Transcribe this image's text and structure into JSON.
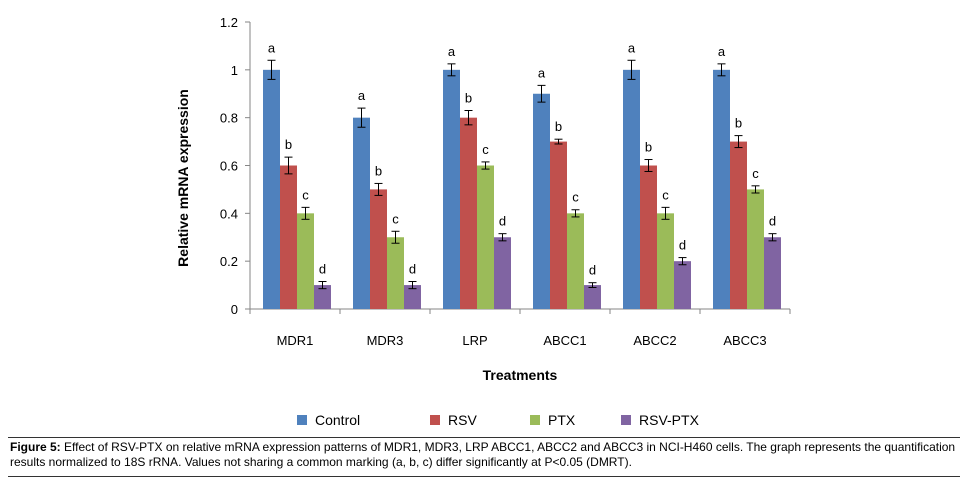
{
  "chart_data": {
    "type": "bar",
    "ylabel": "Relative mRNA expression",
    "xlabel": "Treatments",
    "ylim": [
      0,
      1.2
    ],
    "yticks": [
      "0",
      "0.2",
      "0.4",
      "0.6",
      "0.8",
      "1",
      "1.2"
    ],
    "ytick_values": [
      0,
      0.2,
      0.4,
      0.6,
      0.8,
      1.0,
      1.2
    ],
    "categories": [
      "MDR1",
      "MDR3",
      "LRP",
      "ABCC1",
      "ABCC2",
      "ABCC3"
    ],
    "legend_position": "bottom",
    "series": [
      {
        "name": "Control",
        "color": "#4F81BD",
        "values": [
          1.0,
          0.8,
          1.0,
          0.9,
          1.0,
          1.0
        ],
        "errors": [
          0.04,
          0.04,
          0.025,
          0.035,
          0.04,
          0.025
        ],
        "labels": [
          "a",
          "a",
          "a",
          "a",
          "a",
          "a"
        ]
      },
      {
        "name": "RSV",
        "color": "#C0504D",
        "values": [
          0.6,
          0.5,
          0.8,
          0.7,
          0.6,
          0.7
        ],
        "errors": [
          0.035,
          0.025,
          0.03,
          0.01,
          0.025,
          0.025
        ],
        "labels": [
          "b",
          "b",
          "b",
          "b",
          "b",
          "b"
        ]
      },
      {
        "name": "PTX",
        "color": "#9BBB59",
        "values": [
          0.4,
          0.3,
          0.6,
          0.4,
          0.4,
          0.5
        ],
        "errors": [
          0.025,
          0.025,
          0.015,
          0.015,
          0.025,
          0.015
        ],
        "labels": [
          "c",
          "c",
          "c",
          "c",
          "c",
          "c"
        ]
      },
      {
        "name": "RSV-PTX",
        "color": "#8064A2",
        "values": [
          0.1,
          0.1,
          0.3,
          0.1,
          0.2,
          0.3
        ],
        "errors": [
          0.015,
          0.015,
          0.015,
          0.01,
          0.015,
          0.015
        ],
        "labels": [
          "d",
          "d",
          "d",
          "d",
          "d",
          "d"
        ]
      }
    ]
  },
  "legend": {
    "items": [
      "Control",
      "RSV",
      "PTX",
      "RSV-PTX"
    ]
  },
  "caption": {
    "label": "Figure 5:",
    "text": " Effect of RSV-PTX on relative mRNA expression patterns of MDR1, MDR3, LRP ABCC1, ABCC2 and ABCC3 in NCI-H460 cells. The graph represents the quantification results normalized to 18S rRNA. Values not sharing a common marking (a, b, c) differ significantly at P<0.05 (DMRT)."
  }
}
